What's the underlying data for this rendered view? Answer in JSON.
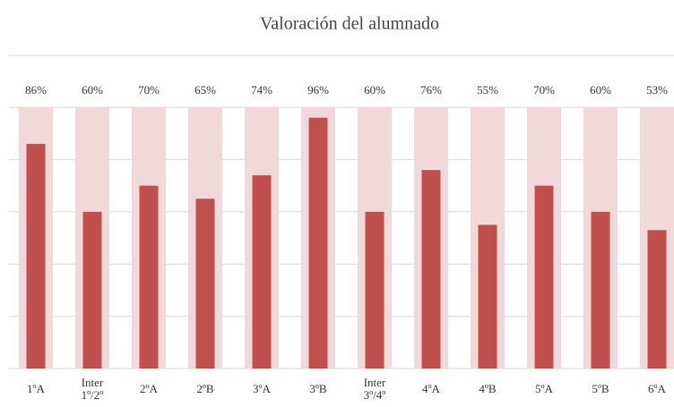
{
  "chart_data": {
    "type": "bar",
    "title": "Valoración del alumnado",
    "categories": [
      "1ºA",
      "Inter\n1º/2º",
      "2ºA",
      "2ºB",
      "3ºA",
      "3ºB",
      "Inter\n3º/4º",
      "4ºA",
      "4ºB",
      "5ºA",
      "5ºB",
      "6ºA"
    ],
    "series": [
      {
        "color": "#f2d9d9",
        "values": [
          100,
          100,
          100,
          100,
          100,
          100,
          100,
          100,
          100,
          100,
          100,
          100
        ]
      },
      {
        "color": "#c0504d",
        "values": [
          86,
          60,
          70,
          65,
          74,
          96,
          60,
          76,
          55,
          70,
          60,
          53
        ],
        "value_labels": [
          "86%",
          "60%",
          "70%",
          "65%",
          "74%",
          "96%",
          "60%",
          "76%",
          "55%",
          "70%",
          "60%",
          "53%"
        ]
      }
    ],
    "ylim": [
      0,
      100
    ],
    "yticks": [
      0,
      20,
      40,
      60,
      80,
      100
    ],
    "grid": true
  }
}
